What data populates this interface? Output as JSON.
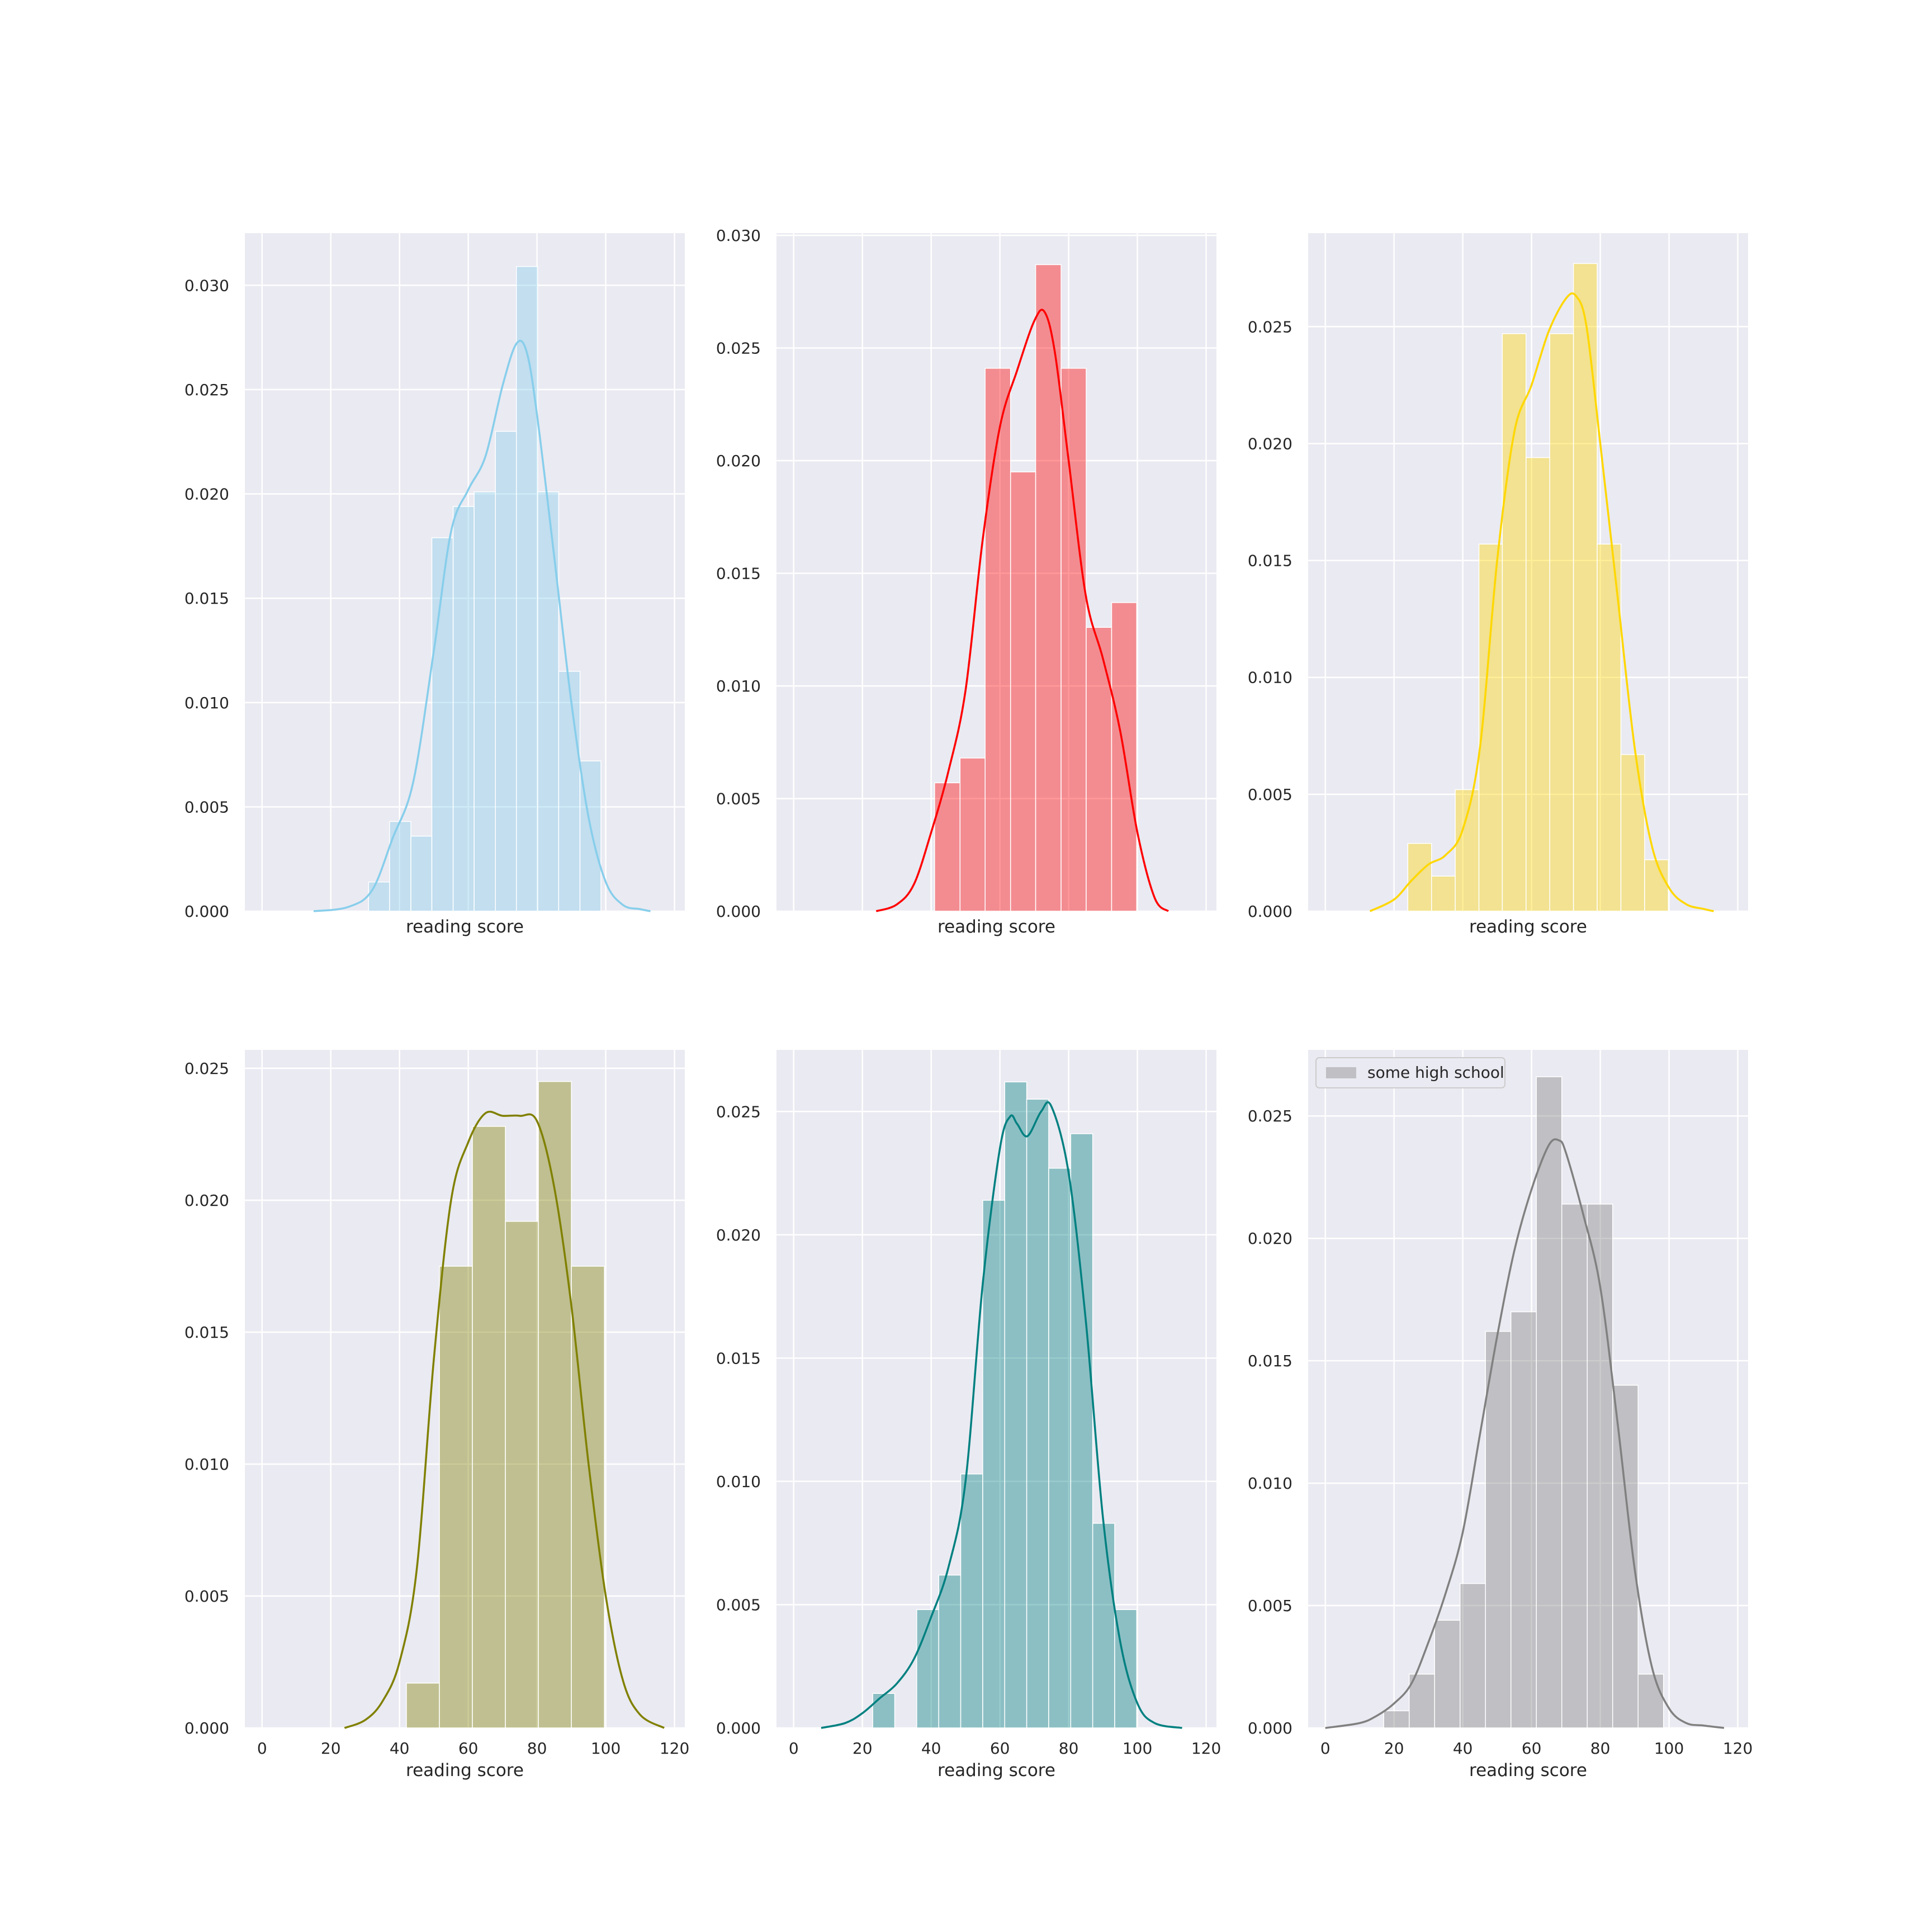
{
  "chart_data": [
    {
      "type": "bar",
      "subtype": "histogram_with_kde",
      "xlabel": "reading score",
      "ylabel": "",
      "xlim": [
        -5,
        123
      ],
      "ylim": [
        0,
        0.0325
      ],
      "xticks": [
        0,
        20,
        40,
        60,
        80,
        100,
        120
      ],
      "show_xticklabels": false,
      "yticks": [
        0.0,
        0.005,
        0.01,
        0.015,
        0.02,
        0.025,
        0.03
      ],
      "yticklabels": [
        "0.000",
        "0.005",
        "0.010",
        "0.015",
        "0.020",
        "0.025",
        "0.030"
      ],
      "color": "#87CEEB",
      "bar_opacity": 0.4,
      "bin_edges": [
        31,
        37.1,
        43.3,
        49.4,
        55.6,
        61.7,
        67.9,
        74.0,
        80.2,
        86.3,
        92.5,
        98.6
      ],
      "values": [
        0.0014,
        0.0043,
        0.0036,
        0.0179,
        0.0194,
        0.0201,
        0.023,
        0.0309,
        0.0201,
        0.0115,
        0.0072
      ],
      "kde": {
        "x": [
          15,
          25,
          32,
          38,
          44,
          50,
          55,
          60,
          65,
          70,
          74,
          77,
          80,
          85,
          90,
          95,
          100,
          105,
          110,
          113
        ],
        "y": [
          0.0,
          0.0002,
          0.001,
          0.0035,
          0.0062,
          0.0125,
          0.0182,
          0.0202,
          0.0218,
          0.0252,
          0.0272,
          0.0268,
          0.0238,
          0.017,
          0.01,
          0.0045,
          0.0014,
          0.0003,
          0.0001,
          0.0
        ]
      },
      "legend": null
    },
    {
      "type": "bar",
      "subtype": "histogram_with_kde",
      "xlabel": "reading score",
      "ylabel": "",
      "xlim": [
        -5,
        123
      ],
      "ylim": [
        0,
        0.0301
      ],
      "xticks": [
        0,
        20,
        40,
        60,
        80,
        100,
        120
      ],
      "show_xticklabels": false,
      "yticks": [
        0.0,
        0.005,
        0.01,
        0.015,
        0.02,
        0.025,
        0.03
      ],
      "yticklabels": [
        "0.000",
        "0.005",
        "0.010",
        "0.015",
        "0.020",
        "0.025",
        "0.030"
      ],
      "color": "#FF0000",
      "bar_opacity": 0.4,
      "bin_edges": [
        41,
        48.4,
        55.7,
        63.1,
        70.4,
        77.8,
        85.1,
        92.5,
        99.8
      ],
      "values": [
        0.0057,
        0.0068,
        0.0241,
        0.0195,
        0.0287,
        0.0241,
        0.0126,
        0.0137
      ],
      "kde": {
        "x": [
          24,
          30,
          35,
          40,
          45,
          50,
          55,
          60,
          65,
          70,
          73,
          76,
          80,
          85,
          90,
          95,
          100,
          105,
          109
        ],
        "y": [
          0.0,
          0.0003,
          0.0012,
          0.0035,
          0.0062,
          0.0098,
          0.0165,
          0.0215,
          0.024,
          0.0262,
          0.0266,
          0.0248,
          0.02,
          0.014,
          0.0112,
          0.008,
          0.0035,
          0.0006,
          0.0
        ]
      },
      "legend": null
    },
    {
      "type": "bar",
      "subtype": "histogram_with_kde",
      "xlabel": "reading score",
      "ylabel": "",
      "xlim": [
        -5,
        123
      ],
      "ylim": [
        0,
        0.029
      ],
      "xticks": [
        0,
        20,
        40,
        60,
        80,
        100,
        120
      ],
      "show_xticklabels": false,
      "yticks": [
        0.0,
        0.005,
        0.01,
        0.015,
        0.02,
        0.025
      ],
      "yticklabels": [
        "0.000",
        "0.005",
        "0.010",
        "0.015",
        "0.020",
        "0.025"
      ],
      "color": "#FFD700",
      "bar_opacity": 0.4,
      "bin_edges": [
        24,
        30.9,
        37.8,
        44.7,
        51.5,
        58.4,
        65.3,
        72.2,
        79.1,
        86.0,
        92.9,
        99.8
      ],
      "values": [
        0.0029,
        0.0015,
        0.0052,
        0.0157,
        0.0247,
        0.0194,
        0.0247,
        0.0277,
        0.0157,
        0.0067,
        0.0022
      ],
      "kde": {
        "x": [
          13,
          20,
          25,
          30,
          35,
          40,
          45,
          50,
          55,
          60,
          65,
          70,
          73,
          76,
          80,
          85,
          90,
          95,
          100,
          105,
          110,
          113
        ],
        "y": [
          0.0,
          0.0005,
          0.0013,
          0.002,
          0.0024,
          0.0035,
          0.007,
          0.015,
          0.0205,
          0.0225,
          0.0248,
          0.0262,
          0.0263,
          0.025,
          0.02,
          0.0135,
          0.007,
          0.0028,
          0.001,
          0.0003,
          0.0001,
          0.0
        ]
      },
      "legend": null
    },
    {
      "type": "bar",
      "subtype": "histogram_with_kde",
      "xlabel": "reading score",
      "ylabel": "",
      "xlim": [
        -5,
        123
      ],
      "ylim": [
        0,
        0.0257
      ],
      "xticks": [
        0,
        20,
        40,
        60,
        80,
        100,
        120
      ],
      "xticklabels": [
        "0",
        "20",
        "40",
        "60",
        "80",
        "100",
        "120"
      ],
      "show_xticklabels": true,
      "yticks": [
        0.0,
        0.005,
        0.01,
        0.015,
        0.02,
        0.025
      ],
      "yticklabels": [
        "0.000",
        "0.005",
        "0.010",
        "0.015",
        "0.020",
        "0.025"
      ],
      "color": "#808000",
      "bar_opacity": 0.4,
      "bin_edges": [
        42,
        51.6,
        61.2,
        70.8,
        80.4,
        90.0,
        99.6
      ],
      "values": [
        0.0017,
        0.0175,
        0.0228,
        0.0192,
        0.0245,
        0.0175
      ],
      "kde": {
        "x": [
          24,
          30,
          35,
          40,
          45,
          50,
          55,
          60,
          65,
          70,
          75,
          80,
          85,
          90,
          95,
          100,
          105,
          110,
          117
        ],
        "y": [
          0.0,
          0.0003,
          0.001,
          0.0025,
          0.006,
          0.014,
          0.02,
          0.0222,
          0.0233,
          0.0232,
          0.0232,
          0.023,
          0.0205,
          0.016,
          0.01,
          0.005,
          0.0018,
          0.0005,
          0.0
        ]
      },
      "legend": null
    },
    {
      "type": "bar",
      "subtype": "histogram_with_kde",
      "xlabel": "reading score",
      "ylabel": "",
      "xlim": [
        -5,
        123
      ],
      "ylim": [
        0,
        0.0275
      ],
      "xticks": [
        0,
        20,
        40,
        60,
        80,
        100,
        120
      ],
      "xticklabels": [
        "0",
        "20",
        "40",
        "60",
        "80",
        "100",
        "120"
      ],
      "show_xticklabels": true,
      "yticks": [
        0.0,
        0.005,
        0.01,
        0.015,
        0.02,
        0.025
      ],
      "yticklabels": [
        "0.000",
        "0.005",
        "0.010",
        "0.015",
        "0.020",
        "0.025"
      ],
      "color": "#008080",
      "bar_opacity": 0.4,
      "bin_edges": [
        23,
        29.4,
        35.8,
        42.2,
        48.6,
        55.0,
        61.4,
        67.8,
        74.2,
        80.6,
        87.0,
        93.4,
        99.8
      ],
      "values": [
        0.0014,
        0.0,
        0.0048,
        0.0062,
        0.0103,
        0.0214,
        0.0262,
        0.0255,
        0.0227,
        0.0241,
        0.0083,
        0.0048
      ],
      "kde": {
        "x": [
          8,
          15,
          20,
          25,
          30,
          35,
          40,
          45,
          50,
          55,
          60,
          63,
          65,
          68,
          72,
          75,
          80,
          85,
          90,
          95,
          100,
          105,
          113
        ],
        "y": [
          0.0,
          0.0002,
          0.0006,
          0.0012,
          0.0018,
          0.0028,
          0.0045,
          0.0065,
          0.01,
          0.018,
          0.0235,
          0.0248,
          0.0245,
          0.024,
          0.025,
          0.0252,
          0.0225,
          0.0165,
          0.0085,
          0.0035,
          0.001,
          0.0002,
          0.0
        ]
      },
      "legend": null
    },
    {
      "type": "bar",
      "subtype": "histogram_with_kde",
      "xlabel": "reading score",
      "ylabel": "",
      "xlim": [
        -5,
        123
      ],
      "ylim": [
        0,
        0.0277
      ],
      "xticks": [
        0,
        20,
        40,
        60,
        80,
        100,
        120
      ],
      "xticklabels": [
        "0",
        "20",
        "40",
        "60",
        "80",
        "100",
        "120"
      ],
      "show_xticklabels": true,
      "yticks": [
        0.0,
        0.005,
        0.01,
        0.015,
        0.02,
        0.025
      ],
      "yticklabels": [
        "0.000",
        "0.005",
        "0.010",
        "0.015",
        "0.020",
        "0.025"
      ],
      "color": "#808080",
      "bar_opacity": 0.4,
      "bin_edges": [
        17,
        24.4,
        31.8,
        39.2,
        46.6,
        54.0,
        61.4,
        68.8,
        76.2,
        83.6,
        91.0,
        98.4
      ],
      "values": [
        0.0007,
        0.0022,
        0.0044,
        0.0059,
        0.0162,
        0.017,
        0.0266,
        0.0214,
        0.0214,
        0.014,
        0.0022
      ],
      "kde": {
        "x": [
          0,
          10,
          15,
          20,
          25,
          30,
          35,
          40,
          45,
          50,
          55,
          60,
          65,
          68,
          70,
          75,
          80,
          85,
          90,
          95,
          100,
          105,
          110,
          116
        ],
        "y": [
          0.0,
          0.0002,
          0.0005,
          0.001,
          0.0018,
          0.0035,
          0.0055,
          0.008,
          0.012,
          0.016,
          0.0195,
          0.022,
          0.0238,
          0.024,
          0.0235,
          0.021,
          0.018,
          0.0125,
          0.0065,
          0.0025,
          0.0008,
          0.0002,
          0.0001,
          0.0
        ]
      },
      "legend": {
        "label": "some high school",
        "placement": "top-left"
      }
    }
  ]
}
